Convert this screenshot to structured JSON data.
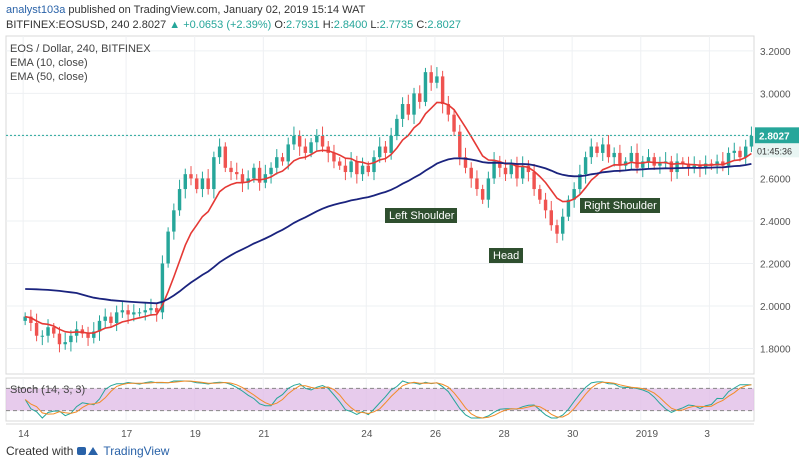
{
  "header": {
    "author": "analyst103a",
    "published": "published on TradingView.com, January 02, 2019 15:14 WAT",
    "symbol": "BITFINEX:EOSUSD, 240",
    "close_price": "2.8027",
    "change": "+0.0653 (+2.39%)",
    "open": "2.7931",
    "high": "2.8400",
    "low": "2.7735",
    "close": "2.8027",
    "o_label": "O:",
    "h_label": "H:",
    "l_label": "L:",
    "c_label": "C:"
  },
  "legend": {
    "title": "EOS / Dollar, 240, BITFINEX",
    "ema10": "EMA (10, close)",
    "ema50": "EMA (50, close)",
    "stoch": "Stoch (14, 3, 3)"
  },
  "price_tag": {
    "price": "2.8027",
    "countdown": "01:45:36"
  },
  "annotations": {
    "left_shoulder": "Left Shoulder",
    "head": "Head",
    "right_shoulder": "Right Shoulder"
  },
  "footer": {
    "created_with": "Created with",
    "brand": "TradingView"
  },
  "colors": {
    "up": "#26a69a",
    "down": "#ef5350",
    "ema10": "#e53935",
    "ema50": "#1a237e",
    "pattern_fill": "#8bc34a",
    "pattern_stroke": "#2e5d1a",
    "label_bg": "#2f4f2f",
    "stoch_bg": "#e1bee7",
    "stoch_k": "#26a69a",
    "stoch_d": "#f28c28"
  },
  "chart_data": {
    "type": "candlestick",
    "title": "EOS / Dollar, 240, BITFINEX",
    "y_axis_ticks": [
      1.8,
      2.0,
      2.2,
      2.4,
      2.6,
      2.8,
      3.0,
      3.2
    ],
    "y_tick_labels": [
      "1.8000",
      "2.0000",
      "2.2000",
      "2.4000",
      "2.6000",
      "2.8000",
      "3.0000",
      "3.2000"
    ],
    "ylim": [
      1.68,
      3.27
    ],
    "x_tick_labels": [
      "14",
      "17",
      "19",
      "21",
      "24",
      "26",
      "28",
      "30",
      "2019",
      "3"
    ],
    "x_tick_days": [
      0,
      3,
      5,
      7,
      10,
      12,
      14,
      16,
      18,
      20
    ],
    "xlim": [
      -0.5,
      21.3
    ],
    "last_price": 2.8027,
    "closes": [
      1.95,
      1.92,
      1.86,
      1.86,
      1.9,
      1.87,
      1.82,
      1.83,
      1.86,
      1.89,
      1.87,
      1.85,
      1.88,
      1.93,
      1.95,
      1.92,
      1.97,
      1.98,
      1.96,
      1.97,
      1.97,
      1.98,
      1.99,
      1.97,
      2.2,
      2.35,
      2.45,
      2.55,
      2.62,
      2.6,
      2.55,
      2.6,
      2.55,
      2.7,
      2.75,
      2.65,
      2.63,
      2.62,
      2.58,
      2.6,
      2.65,
      2.58,
      2.62,
      2.65,
      2.7,
      2.68,
      2.76,
      2.8,
      2.75,
      2.72,
      2.77,
      2.8,
      2.75,
      2.72,
      2.68,
      2.66,
      2.63,
      2.68,
      2.62,
      2.66,
      2.63,
      2.7,
      2.75,
      2.72,
      2.8,
      2.88,
      2.95,
      2.9,
      3.0,
      2.96,
      3.1,
      3.05,
      3.08,
      2.95,
      2.9,
      2.82,
      2.7,
      2.65,
      2.6,
      2.55,
      2.5,
      2.6,
      2.68,
      2.65,
      2.62,
      2.67,
      2.6,
      2.66,
      2.63,
      2.55,
      2.5,
      2.45,
      2.38,
      2.34,
      2.42,
      2.5,
      2.55,
      2.62,
      2.7,
      2.75,
      2.72,
      2.76,
      2.7,
      2.72,
      2.66,
      2.68,
      2.72,
      2.65,
      2.68,
      2.7,
      2.66,
      2.67,
      2.68,
      2.63,
      2.68,
      2.67,
      2.65,
      2.66,
      2.65,
      2.67,
      2.66,
      2.68,
      2.66,
      2.72,
      2.73,
      2.7,
      2.75,
      2.8
    ],
    "pattern_points": [
      [
        24.9,
        2.76
      ],
      [
        25.35,
        2.56
      ],
      [
        25.6,
        2.76
      ],
      [
        26.4,
        2.76
      ],
      [
        27.1,
        2.45
      ],
      [
        27.3,
        2.41
      ],
      [
        27.6,
        2.45
      ],
      [
        28.5,
        2.76
      ],
      [
        29.6,
        2.76
      ],
      [
        30.6,
        2.57
      ],
      [
        31.4,
        2.76
      ],
      [
        33.6,
        3.08
      ]
    ],
    "x_note": "x values for candles follow day index; 6 candles per day"
  }
}
